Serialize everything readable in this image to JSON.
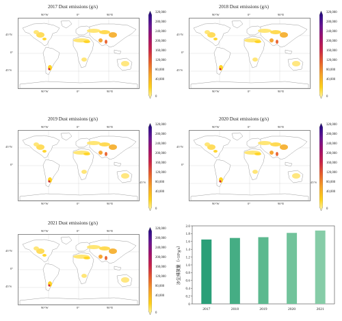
{
  "panels": [
    {
      "title": "2017 Dust emissions (g/s)"
    },
    {
      "title": "2018 Dust emissions (g/s)"
    },
    {
      "title": "2019 Dust emissions (g/s)"
    },
    {
      "title": "2020 Dust emissions (g/s)"
    },
    {
      "title": "2021 Dust emissions (g/s)"
    }
  ],
  "map_axes": {
    "lon_ticks": [
      "90°W",
      "0°",
      "90°E"
    ],
    "lat_ticks": [
      "45°N",
      "0°",
      "45°S"
    ]
  },
  "colorbar": {
    "labels": [
      "320,000",
      "280,000",
      "240,000",
      "200,000",
      "160,000",
      "120,000",
      "80,000",
      "40,000",
      "0"
    ],
    "colors": [
      "#fff7b0",
      "#ffd21a",
      "#f6a12a",
      "#e8602c",
      "#c9234a",
      "#a0106e",
      "#6a1692",
      "#3a0f8c",
      "#1a0a6e"
    ]
  },
  "chart_data": {
    "type": "bar",
    "categories": [
      "2017",
      "2018",
      "2019",
      "2020",
      "2021"
    ],
    "values": [
      1.65,
      1.69,
      1.71,
      1.82,
      1.88
    ],
    "ylabel": "沙尘排放量（×10⁶g/s）",
    "ylim": [
      0,
      2.0
    ],
    "yticks": [
      "0",
      "0.2",
      "0.4",
      "0.6",
      "0.8",
      "1.0",
      "1.2",
      "1.4",
      "1.6",
      "1.8",
      "2.0"
    ],
    "bar_colors": [
      "#2a9f78",
      "#45ad84",
      "#5cb98f",
      "#72c39b",
      "#86cca7"
    ],
    "grid": false
  }
}
